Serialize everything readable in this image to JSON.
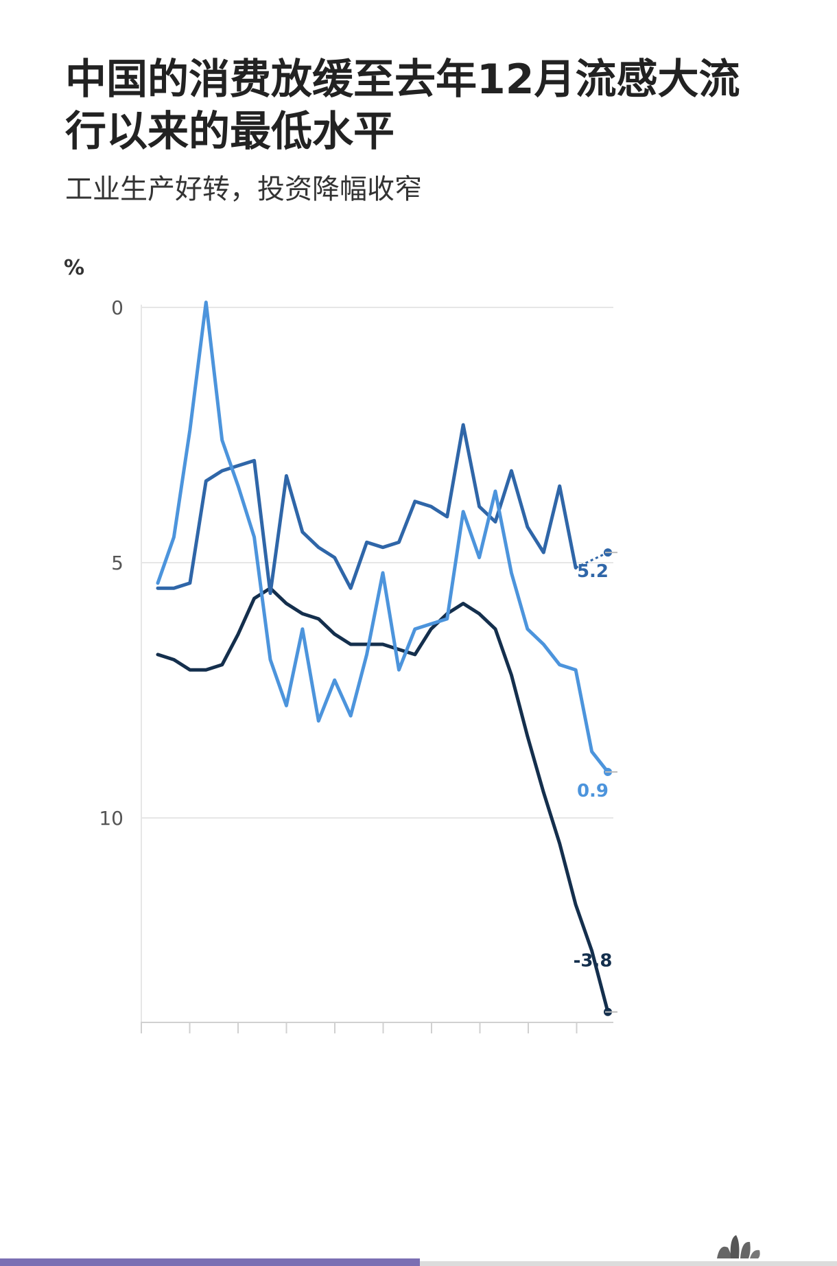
{
  "header": {
    "title": "中国的消费放缓至去年12月流感大流行以来的最低水平",
    "subtitle": "工业生产好转，投资降幅收窄"
  },
  "colors": {
    "industrial": "#2f66a8",
    "retail": "#4c94dc",
    "investment": "#142f4d",
    "grid": "#e6e6e6",
    "axis": "#d0d0d0",
    "bottom_bar": "#7b6fb3"
  },
  "chart_data": {
    "type": "line",
    "title": "中国的消费放缓至去年12月流感大流行以来的最低水平",
    "subtitle": "工业生产好转，投资降幅收窄",
    "ylabel": "%",
    "ylim": [
      -4,
      10
    ],
    "yticks": [
      0,
      5,
      10
    ],
    "grid": true,
    "x_count": 29,
    "series": [
      {
        "key": "industrial",
        "values": [
          4.5,
          4.5,
          4.6,
          6.6,
          6.8,
          6.9,
          7.0,
          4.4,
          6.7,
          5.6,
          5.3,
          5.1,
          4.5,
          5.4,
          5.3,
          5.4,
          6.2,
          6.1,
          5.9,
          7.7,
          6.1,
          5.8,
          6.8,
          5.7,
          5.2,
          6.5,
          4.9,
          null,
          5.2
        ],
        "end_label": "5.2"
      },
      {
        "key": "retail",
        "values": [
          4.6,
          5.5,
          7.6,
          10.1,
          7.4,
          6.5,
          5.5,
          3.1,
          2.2,
          3.7,
          1.9,
          2.7,
          2.0,
          3.2,
          4.8,
          2.9,
          3.7,
          3.8,
          3.9,
          6.0,
          5.1,
          6.4,
          4.8,
          3.7,
          3.4,
          3.0,
          2.9,
          1.3,
          0.9
        ],
        "end_label": "0.9"
      },
      {
        "key": "investment",
        "values": [
          3.2,
          3.1,
          2.9,
          2.9,
          3.0,
          3.6,
          4.3,
          4.5,
          4.2,
          4.0,
          3.9,
          3.6,
          3.4,
          3.4,
          3.4,
          3.3,
          3.2,
          3.7,
          4.0,
          4.2,
          4.0,
          3.7,
          2.8,
          1.6,
          0.5,
          -0.5,
          -1.7,
          -2.6,
          -3.8
        ],
        "end_label": "-3.8"
      }
    ],
    "end_labels": {
      "industrial": "5.2",
      "retail": "0.9",
      "investment": "-3.8"
    },
    "tick_labels": [
      "10",
      "5",
      "0"
    ]
  }
}
